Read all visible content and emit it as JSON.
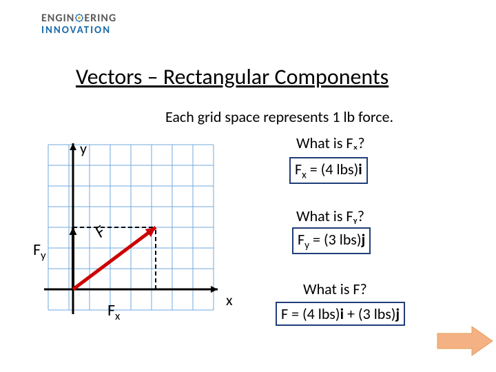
{
  "logo": {
    "line1_a": "ENGIN",
    "line1_b": "ERING",
    "line2": "INNOVATION"
  },
  "title": "Vectors – Rectangular Components",
  "subtitle": "Each grid space represents 1 lb force.",
  "questions": {
    "q1": "What is Fₓ?",
    "a1": "Fₓ = (4 lbs)i",
    "q2": "What is Fᵧ?",
    "a2": "Fᵧ = (3 lbs)j",
    "q3": "What is F?",
    "a3_prefix": "F = (4 lbs)",
    "a3_mid": "i",
    "a3_plus": " + (3 lbs)",
    "a3_suf": "j"
  },
  "axis": {
    "y": "y",
    "x": "x"
  },
  "compLabels": {
    "Fy": "F",
    "Fy_sub": "y",
    "Fx": "F",
    "Fx_sub": "x",
    "Fmain": "F"
  },
  "grid": {
    "cell": 30,
    "cols": 8,
    "rows": 8,
    "gridColor": "#6fa8dc",
    "axisColor": "#000000",
    "vectorColor": "#cc0000",
    "componentDash": "6,4",
    "origin_col": 1.2,
    "origin_row": 7,
    "vec_dx": 4,
    "vec_dy": -3
  },
  "colors": {
    "boxBorder": "#1f3d7a",
    "arrowFill": "#f4b183",
    "arrowStroke": "#e8a05a"
  }
}
